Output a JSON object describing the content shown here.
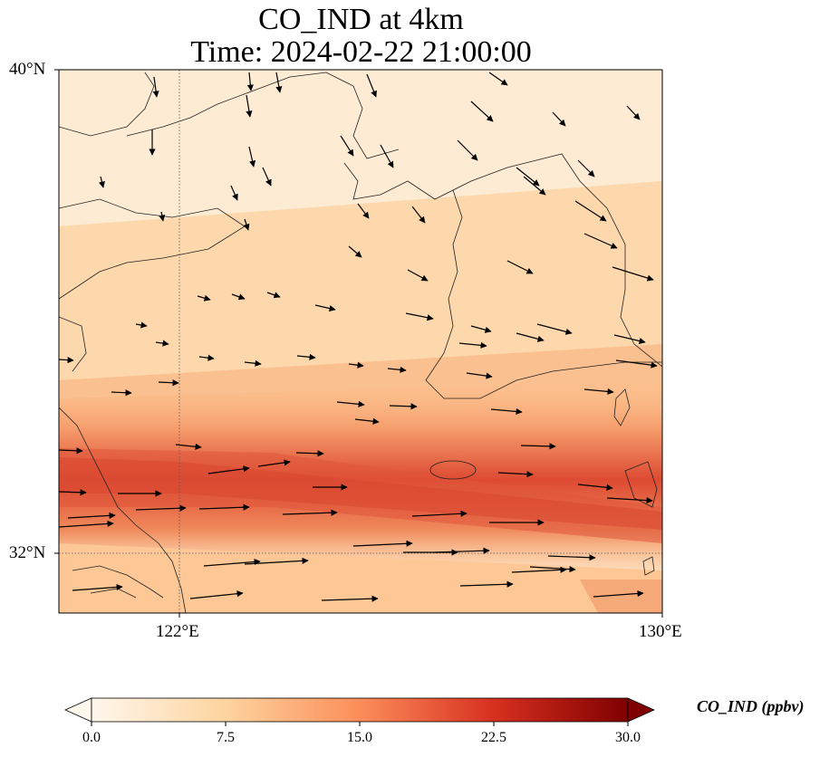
{
  "title": {
    "line1": "CO_IND at 4km",
    "line2": "Time: 2024-02-22 21:00:00"
  },
  "map": {
    "variable": "CO_IND",
    "level": "4km",
    "time": "2024-02-22 21:00:00",
    "lon_range": [
      120,
      130
    ],
    "lat_range": [
      31,
      40
    ],
    "x_ticks": [
      "122°E",
      "130°E"
    ],
    "y_ticks": [
      "40°N",
      "32°N"
    ],
    "gridlines": "dotted",
    "overlays": [
      "coastlines",
      "borders",
      "wind vectors"
    ],
    "colormap": "OrRd"
  },
  "colorbar": {
    "label": "CO_IND (ppbv)",
    "ticks": [
      "0.0",
      "7.5",
      "15.0",
      "22.5",
      "30.0"
    ],
    "min": 0,
    "max": 30,
    "extend": "both",
    "colors": [
      "#fff7ec",
      "#fdd49e",
      "#fc8d59",
      "#d7301f",
      "#7f0000"
    ]
  }
}
